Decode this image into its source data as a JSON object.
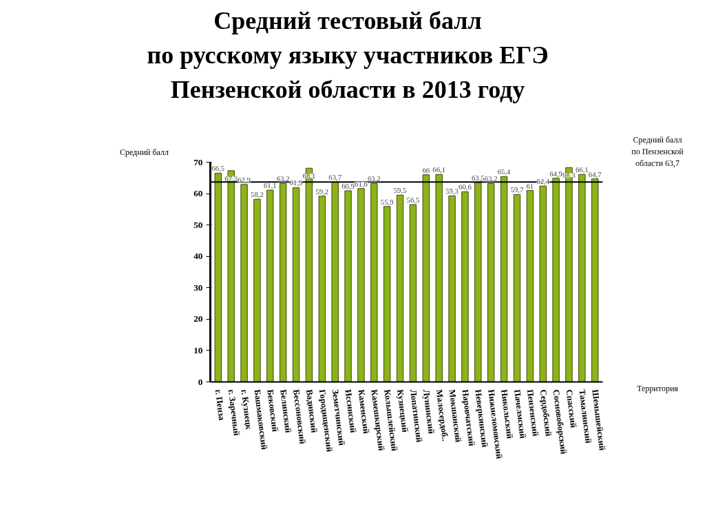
{
  "chart_data": {
    "type": "bar",
    "title": "Средний тестовый балл\nпо русскому языку участников ЕГЭ\nПензенской области в 2013 году",
    "ylabel": "Средний балл",
    "xlabel": "Территория",
    "categories": [
      "г. Пенза",
      "г. Заречный",
      "г. Кузнецк",
      "Башмаковский",
      "Бековский",
      "Белинский",
      "Бессоновский",
      "Вадинский",
      "Городищенский",
      "Земетчинский",
      "Иссинский",
      "Каменский",
      "Камешкирский",
      "Колышлейский",
      "Кузнецкий",
      "Лопатинский",
      "Лунинский",
      "Малосердоб..",
      "Мокшанский",
      "Наровчатский",
      "Неверкинский",
      "Нижнеломовский",
      "Никольский",
      "Пачелмский",
      "Пензенский",
      "Сердобский",
      "Сосновоборский",
      "Спасский",
      "Тамалинский",
      "Шемышейский"
    ],
    "values": [
      66.5,
      67.3,
      62.9,
      58.2,
      61.1,
      63.2,
      61.9,
      68.1,
      59.2,
      63.7,
      60.9,
      61.6,
      63.2,
      55.9,
      59.5,
      56.5,
      66,
      66.1,
      59.3,
      60.6,
      63.5,
      63.2,
      65.4,
      59.7,
      61,
      62.4,
      64.9,
      68.3,
      66.1,
      64.7
    ],
    "value_labels": [
      "66,5",
      "67,3",
      "62,9",
      "58,2",
      "61,1",
      "63,2",
      "61,9",
      "68,1",
      "59,2",
      "63,7",
      "60,9",
      "61,6",
      "63,2",
      "55,9",
      "59,5",
      "56,5",
      "66",
      "66,1",
      "59,3",
      "60,6",
      "63,5",
      "63,2",
      "65,4",
      "59,7",
      "61",
      "62,4",
      "64,9",
      "68,3",
      "66,1",
      "64,7"
    ],
    "color": "#8db31a",
    "ylim": [
      0,
      70
    ],
    "yticks": [
      0,
      10,
      20,
      30,
      40,
      50,
      60,
      70
    ],
    "ref_lines": [
      {
        "axis": "y",
        "value": 63.7,
        "label": "Средний балл\nпо Пензенской\nобласти 63,7",
        "color": "#000000"
      }
    ]
  }
}
